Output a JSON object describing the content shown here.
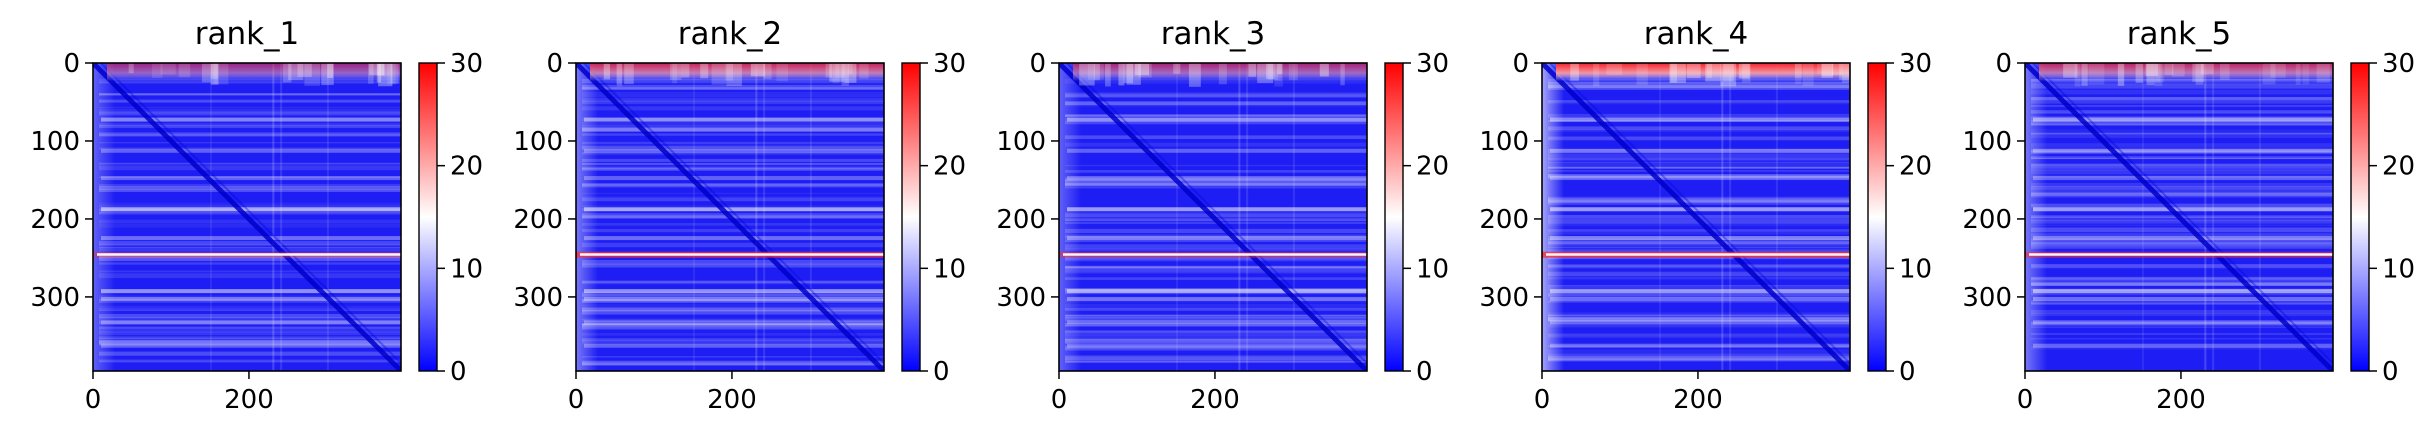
{
  "chart_data": [
    {
      "type": "heatmap",
      "title": "rank_1",
      "xticks": [
        0,
        200
      ],
      "yticks": [
        0,
        100,
        200,
        300
      ],
      "colorbar": {
        "ticks": [
          0,
          10,
          20,
          30
        ],
        "min": 0,
        "max": 30,
        "colormap": "bwr"
      },
      "features": {
        "top_band": 0.55,
        "row_band": 0.45,
        "left_edge": 0.3
      }
    },
    {
      "type": "heatmap",
      "title": "rank_2",
      "xticks": [
        0,
        200
      ],
      "yticks": [
        0,
        100,
        200,
        300
      ],
      "colorbar": {
        "ticks": [
          0,
          10,
          20,
          30
        ],
        "min": 0,
        "max": 30,
        "colormap": "bwr"
      },
      "features": {
        "top_band": 0.75,
        "row_band": 0.8,
        "left_edge": 0.4
      }
    },
    {
      "type": "heatmap",
      "title": "rank_3",
      "xticks": [
        0,
        200
      ],
      "yticks": [
        0,
        100,
        200,
        300
      ],
      "colorbar": {
        "ticks": [
          0,
          10,
          20,
          30
        ],
        "min": 0,
        "max": 30,
        "colormap": "bwr"
      },
      "features": {
        "top_band": 0.6,
        "row_band": 0.55,
        "left_edge": 0.3
      }
    },
    {
      "type": "heatmap",
      "title": "rank_4",
      "xticks": [
        0,
        200
      ],
      "yticks": [
        0,
        100,
        200,
        300
      ],
      "colorbar": {
        "ticks": [
          0,
          10,
          20,
          30
        ],
        "min": 0,
        "max": 30,
        "colormap": "bwr"
      },
      "features": {
        "top_band": 0.95,
        "row_band": 0.85,
        "left_edge": 0.6
      }
    },
    {
      "type": "heatmap",
      "title": "rank_5",
      "xticks": [
        0,
        200
      ],
      "yticks": [
        0,
        100,
        200,
        300
      ],
      "colorbar": {
        "ticks": [
          0,
          10,
          20,
          30
        ],
        "min": 0,
        "max": 30,
        "colormap": "bwr"
      },
      "features": {
        "top_band": 0.7,
        "row_band": 0.65,
        "left_edge": 0.4
      }
    }
  ]
}
